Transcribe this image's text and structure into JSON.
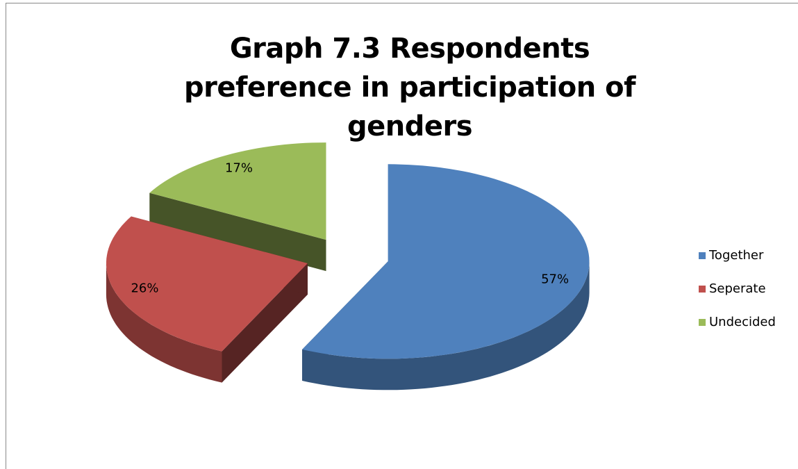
{
  "chart_data": {
    "type": "pie",
    "title": "Graph 7.3 Respondents preference in participation of genders",
    "categories": [
      "Together",
      "Seperate",
      "Undecided"
    ],
    "values": [
      57,
      26,
      17
    ],
    "value_labels": [
      "57%",
      "26%",
      "17%"
    ],
    "colors": [
      "#4f81bd",
      "#c0504d",
      "#9bbb59"
    ],
    "legend": "right"
  }
}
